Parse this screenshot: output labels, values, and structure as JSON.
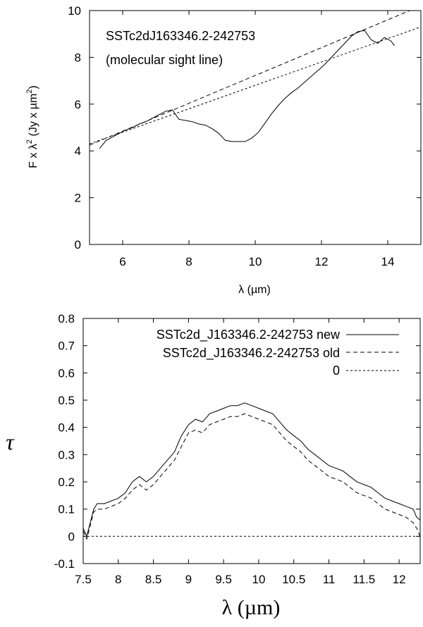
{
  "chart_data": [
    {
      "type": "line",
      "xlabel": "λ (µm)",
      "ylabel": "F x λ² (Jy x µm²)",
      "ylabel_parts": {
        "prefix": "F x λ",
        "sup1": "2",
        "middle": " (Jy x µm",
        "sup2": "2",
        "suffix": ")"
      },
      "xlim": [
        5,
        15
      ],
      "ylim": [
        0,
        10
      ],
      "xticks": [
        6,
        8,
        10,
        12,
        14
      ],
      "yticks": [
        0,
        2,
        4,
        6,
        8,
        10
      ],
      "grid": false,
      "annotations": [
        "SSTc2dJ163346.2-242753",
        "(molecular sight line)"
      ],
      "series": [
        {
          "style": "solid",
          "x": [
            5.3,
            5.5,
            5.7,
            5.9,
            6.1,
            6.3,
            6.5,
            6.7,
            6.9,
            7.1,
            7.3,
            7.5,
            7.7,
            7.9,
            8.1,
            8.3,
            8.5,
            8.7,
            8.9,
            9.1,
            9.3,
            9.5,
            9.7,
            9.9,
            10.1,
            10.3,
            10.5,
            10.7,
            10.9,
            11.1,
            11.3,
            11.5,
            11.7,
            11.9,
            12.1,
            12.3,
            12.5,
            12.7,
            12.9,
            13.1,
            13.3,
            13.5,
            13.7,
            13.9,
            14.1,
            14.2
          ],
          "y": [
            4.1,
            4.45,
            4.6,
            4.75,
            4.9,
            5.0,
            5.15,
            5.25,
            5.4,
            5.55,
            5.7,
            5.75,
            5.35,
            5.3,
            5.25,
            5.15,
            5.1,
            4.95,
            4.75,
            4.45,
            4.4,
            4.4,
            4.4,
            4.55,
            4.8,
            5.2,
            5.6,
            5.95,
            6.25,
            6.5,
            6.7,
            6.95,
            7.2,
            7.45,
            7.7,
            8.0,
            8.3,
            8.6,
            8.9,
            9.1,
            9.15,
            8.75,
            8.6,
            8.85,
            8.7,
            8.5
          ]
        },
        {
          "style": "dashed",
          "x": [
            5,
            15
          ],
          "y": [
            4.25,
            10.2
          ]
        },
        {
          "style": "dotted",
          "x": [
            5,
            15
          ],
          "y": [
            4.3,
            9.3
          ]
        }
      ]
    },
    {
      "type": "line",
      "xlabel": "λ (µm)",
      "ylabel": "τ",
      "xlim": [
        7.5,
        12.3
      ],
      "ylim": [
        -0.1,
        0.8
      ],
      "xticks": [
        7.5,
        8,
        8.5,
        9,
        9.5,
        10,
        10.5,
        11,
        11.5,
        12
      ],
      "xtick_labels": [
        "7.5",
        "8",
        "8.5",
        "9",
        "9.5",
        "10",
        "10.5",
        "11",
        "11.5",
        "12"
      ],
      "yticks": [
        -0.1,
        0,
        0.1,
        0.2,
        0.3,
        0.4,
        0.5,
        0.6,
        0.7,
        0.8
      ],
      "ytick_labels": [
        "-0.1",
        "0",
        "0.1",
        "0.2",
        "0.3",
        "0.4",
        "0.5",
        "0.6",
        "0.7",
        "0.8"
      ],
      "grid": false,
      "legend": "top-right",
      "series": [
        {
          "name": "SSTc2d_J163346.2-242753 new",
          "style": "solid",
          "x": [
            7.5,
            7.55,
            7.6,
            7.65,
            7.7,
            7.8,
            7.9,
            8.0,
            8.1,
            8.2,
            8.3,
            8.4,
            8.5,
            8.6,
            8.7,
            8.8,
            8.9,
            9.0,
            9.1,
            9.2,
            9.3,
            9.4,
            9.5,
            9.6,
            9.7,
            9.8,
            9.9,
            10.0,
            10.1,
            10.2,
            10.3,
            10.4,
            10.5,
            10.6,
            10.7,
            10.8,
            10.9,
            11.0,
            11.1,
            11.2,
            11.3,
            11.4,
            11.5,
            11.6,
            11.7,
            11.8,
            11.9,
            12.0,
            12.1,
            12.2,
            12.25,
            12.3
          ],
          "y": [
            0.03,
            0.0,
            0.05,
            0.1,
            0.12,
            0.12,
            0.13,
            0.14,
            0.16,
            0.2,
            0.22,
            0.2,
            0.22,
            0.25,
            0.28,
            0.31,
            0.37,
            0.41,
            0.43,
            0.42,
            0.45,
            0.46,
            0.47,
            0.48,
            0.48,
            0.49,
            0.48,
            0.47,
            0.46,
            0.45,
            0.42,
            0.39,
            0.37,
            0.35,
            0.32,
            0.3,
            0.28,
            0.26,
            0.25,
            0.24,
            0.22,
            0.2,
            0.19,
            0.18,
            0.16,
            0.14,
            0.13,
            0.12,
            0.11,
            0.1,
            0.07,
            0.06
          ]
        },
        {
          "name": "SSTc2d_J163346.2-242753 old",
          "style": "dashed",
          "x": [
            7.5,
            7.55,
            7.6,
            7.65,
            7.7,
            7.8,
            7.9,
            8.0,
            8.1,
            8.2,
            8.3,
            8.4,
            8.5,
            8.6,
            8.7,
            8.8,
            8.9,
            9.0,
            9.1,
            9.2,
            9.3,
            9.4,
            9.5,
            9.6,
            9.7,
            9.8,
            9.9,
            10.0,
            10.1,
            10.2,
            10.3,
            10.4,
            10.5,
            10.6,
            10.7,
            10.8,
            10.9,
            11.0,
            11.1,
            11.2,
            11.3,
            11.4,
            11.5,
            11.6,
            11.7,
            11.8,
            11.9,
            12.0,
            12.1,
            12.2,
            12.25,
            12.3
          ],
          "y": [
            0.02,
            -0.01,
            0.04,
            0.09,
            0.1,
            0.1,
            0.11,
            0.12,
            0.14,
            0.17,
            0.19,
            0.17,
            0.19,
            0.22,
            0.25,
            0.28,
            0.33,
            0.38,
            0.39,
            0.38,
            0.41,
            0.42,
            0.43,
            0.44,
            0.44,
            0.45,
            0.44,
            0.43,
            0.42,
            0.41,
            0.38,
            0.35,
            0.33,
            0.31,
            0.28,
            0.26,
            0.24,
            0.22,
            0.21,
            0.2,
            0.18,
            0.16,
            0.15,
            0.14,
            0.12,
            0.1,
            0.09,
            0.08,
            0.07,
            0.05,
            0.03,
            0.0
          ]
        },
        {
          "name": "0",
          "style": "dotted",
          "x": [
            7.5,
            12.3
          ],
          "y": [
            0,
            0
          ]
        }
      ]
    }
  ]
}
